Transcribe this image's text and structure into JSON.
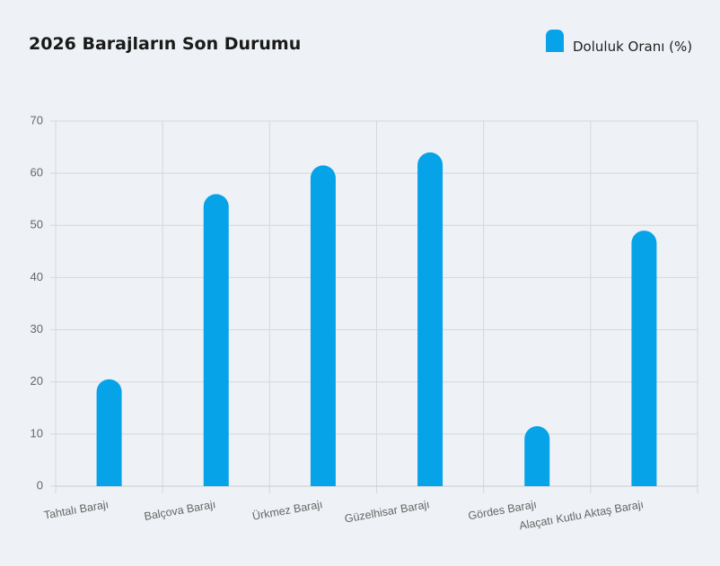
{
  "chart_data": {
    "type": "bar",
    "title": "2026 Barajların Son Durumu",
    "categories": [
      "Tahtalı Barajı",
      "Balçova Barajı",
      "Ürkmez Barajı",
      "Güzelhisar Barajı",
      "Gördes Barajı",
      "Alaçatı Kutlu Aktaş Barajı"
    ],
    "series": [
      {
        "name": "Doluluk Oranı (%)",
        "color": "#06a3e8",
        "values": [
          20.5,
          56,
          61.5,
          64,
          11.5,
          49
        ]
      }
    ],
    "ylim": [
      0,
      70
    ],
    "yticks": [
      0,
      10,
      20,
      30,
      40,
      50,
      60,
      70
    ],
    "grid": true,
    "legend": "top-right"
  }
}
